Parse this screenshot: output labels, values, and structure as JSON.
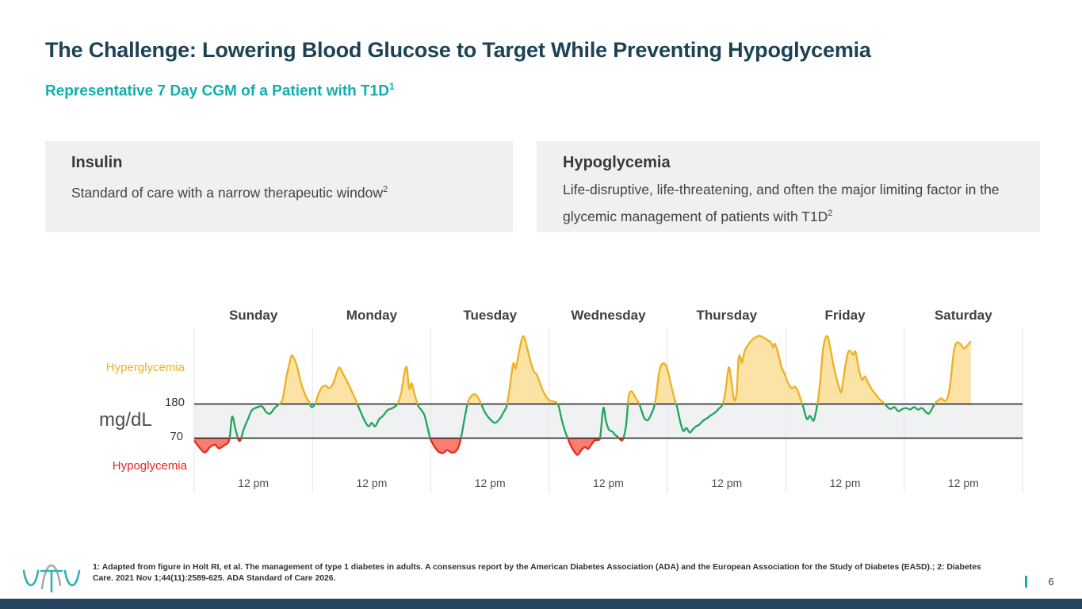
{
  "slide": {
    "title": "The Challenge: Lowering Blood Glucose to Target While Preventing Hypoglycemia",
    "subtitle": "Representative 7 Day CGM of a Patient with T1D",
    "subtitle_sup": "1",
    "page_number": "6"
  },
  "cards": [
    {
      "title": "Insulin",
      "body": "Standard of care with a narrow therapeutic window",
      "sup": "2"
    },
    {
      "title": "Hypoglycemia",
      "body": "Life-disruptive, life-threatening, and often the major limiting factor in the glycemic management of patients with T1D",
      "sup": "2"
    }
  ],
  "footnote": "1: Adapted from figure in Holt RI, et al. The management of type 1 diabetes in adults. A consensus report by the American Diabetes Association (ADA) and the European Association for the Study of Diabetes (EASD).; 2: Diabetes Care. 2021 Nov 1;44(11):2589-625. ADA Standard of Care 2026.",
  "logo_name": "vtv-therapeutics-logo",
  "chart_data": {
    "type": "area",
    "title": "Representative 7 Day CGM of a Patient with T1D",
    "days": [
      "Sunday",
      "Monday",
      "Tuesday",
      "Wednesday",
      "Thursday",
      "Friday",
      "Saturday"
    ],
    "x_tick_label": "12 pm",
    "ylabel": "mg/dL",
    "ylim": [
      40,
      400
    ],
    "thresholds": {
      "high": 180,
      "low": 70
    },
    "zone_labels": {
      "high": "Hyperglycemia",
      "low": "Hypoglycemia"
    },
    "legend_position": "left",
    "grid": "vertical-day-dividers",
    "colors": {
      "in_range_line": "#1fa65c",
      "high_line": "#efb021",
      "high_fill": "#fae3a4",
      "low_line": "#e92a1e",
      "low_fill": "#f87e70",
      "band_fill": "#eff1f3",
      "threshold_line": "#1a1a1a",
      "gridline": "#e7e9f0",
      "accent_teal": "#0fafaf",
      "title_navy": "#1c4254"
    },
    "series": {
      "name": "glucose",
      "unit": "mg/dL",
      "x_unit": "hours_from_sunday_midnight",
      "points": [
        [
          0,
          66
        ],
        [
          0.8,
          57
        ],
        [
          2.1,
          46
        ],
        [
          3.2,
          55
        ],
        [
          4.2,
          59
        ],
        [
          5,
          53
        ],
        [
          6.1,
          58
        ],
        [
          7.1,
          67
        ],
        [
          7.7,
          139
        ],
        [
          8.4,
          96
        ],
        [
          9.2,
          65
        ],
        [
          10.1,
          101
        ],
        [
          10.9,
          131
        ],
        [
          11.7,
          160
        ],
        [
          12.9,
          170
        ],
        [
          13.8,
          172
        ],
        [
          14.6,
          154
        ],
        [
          15.4,
          149
        ],
        [
          16.2,
          165
        ],
        [
          17,
          177
        ],
        [
          17.9,
          195
        ],
        [
          18.7,
          267
        ],
        [
          19.5,
          323
        ],
        [
          19.9,
          336
        ],
        [
          20.8,
          305
        ],
        [
          21.7,
          246
        ],
        [
          22.7,
          203
        ],
        [
          23.3,
          188
        ],
        [
          23.8,
          170
        ],
        [
          24.5,
          180
        ],
        [
          25.1,
          208
        ],
        [
          25.9,
          234
        ],
        [
          26.7,
          239
        ],
        [
          27.4,
          231
        ],
        [
          28.2,
          247
        ],
        [
          28.8,
          275
        ],
        [
          29.4,
          298
        ],
        [
          30.1,
          280
        ],
        [
          30.9,
          257
        ],
        [
          31.9,
          223
        ],
        [
          32.7,
          195
        ],
        [
          33.3,
          172
        ],
        [
          34.1,
          142
        ],
        [
          34.8,
          119
        ],
        [
          35.4,
          108
        ],
        [
          36,
          119
        ],
        [
          36.7,
          108
        ],
        [
          37.5,
          131
        ],
        [
          38.3,
          142
        ],
        [
          39.2,
          160
        ],
        [
          40.2,
          167
        ],
        [
          41.2,
          180
        ],
        [
          42,
          218
        ],
        [
          42.6,
          277
        ],
        [
          43.1,
          298
        ],
        [
          43.6,
          229
        ],
        [
          44.1,
          247
        ],
        [
          44.7,
          211
        ],
        [
          45.4,
          175
        ],
        [
          46,
          162
        ],
        [
          46.7,
          144
        ],
        [
          47.3,
          106
        ],
        [
          47.9,
          69
        ],
        [
          48.8,
          55
        ],
        [
          49.6,
          47
        ],
        [
          50.5,
          45
        ],
        [
          51.3,
          50
        ],
        [
          52.1,
          46
        ],
        [
          52.9,
          47
        ],
        [
          53.6,
          55
        ],
        [
          54.2,
          78
        ],
        [
          54.9,
          139
        ],
        [
          55.5,
          185
        ],
        [
          56.2,
          206
        ],
        [
          57,
          211
        ],
        [
          57.6,
          200
        ],
        [
          58.2,
          180
        ],
        [
          59,
          152
        ],
        [
          60,
          131
        ],
        [
          61,
          119
        ],
        [
          61.9,
          131
        ],
        [
          62.7,
          152
        ],
        [
          63.4,
          175
        ],
        [
          64,
          234
        ],
        [
          64.7,
          310
        ],
        [
          65.2,
          295
        ],
        [
          65.8,
          341
        ],
        [
          66.4,
          387
        ],
        [
          66.9,
          397
        ],
        [
          67.6,
          356
        ],
        [
          68.2,
          318
        ],
        [
          68.9,
          285
        ],
        [
          69.5,
          275
        ],
        [
          70.3,
          239
        ],
        [
          71.3,
          206
        ],
        [
          72.2,
          190
        ],
        [
          73,
          188
        ],
        [
          73.8,
          178
        ],
        [
          74.6,
          126
        ],
        [
          75.3,
          88
        ],
        [
          75.8,
          69
        ],
        [
          76.4,
          57
        ],
        [
          77.2,
          46
        ],
        [
          77.8,
          42
        ],
        [
          78.6,
          51
        ],
        [
          79.3,
          55
        ],
        [
          79.9,
          52
        ],
        [
          80.6,
          60
        ],
        [
          81.2,
          66
        ],
        [
          81.9,
          67
        ],
        [
          82.3,
          69
        ],
        [
          82.5,
          96
        ],
        [
          83,
          168
        ],
        [
          83.5,
          126
        ],
        [
          84.1,
          98
        ],
        [
          84.8,
          91
        ],
        [
          85.4,
          80
        ],
        [
          86,
          73
        ],
        [
          86.5,
          67
        ],
        [
          87,
          69
        ],
        [
          87.6,
          113
        ],
        [
          88.1,
          203
        ],
        [
          88.6,
          221
        ],
        [
          89.1,
          213
        ],
        [
          89.7,
          195
        ],
        [
          90.2,
          183
        ],
        [
          90.7,
          160
        ],
        [
          91.3,
          134
        ],
        [
          92,
          128
        ],
        [
          92.6,
          144
        ],
        [
          93.3,
          172
        ],
        [
          93.7,
          208
        ],
        [
          94.2,
          272
        ],
        [
          94.7,
          305
        ],
        [
          95.4,
          310
        ],
        [
          96,
          290
        ],
        [
          96.6,
          249
        ],
        [
          97.3,
          203
        ],
        [
          97.9,
          172
        ],
        [
          98.6,
          121
        ],
        [
          99.2,
          93
        ],
        [
          99.8,
          103
        ],
        [
          100.5,
          88
        ],
        [
          101.1,
          98
        ],
        [
          101.8,
          108
        ],
        [
          102.4,
          113
        ],
        [
          103.2,
          126
        ],
        [
          104,
          134
        ],
        [
          104.8,
          144
        ],
        [
          105.6,
          152
        ],
        [
          106.4,
          165
        ],
        [
          107.1,
          177
        ],
        [
          107.7,
          216
        ],
        [
          108.2,
          280
        ],
        [
          108.5,
          298
        ],
        [
          109,
          249
        ],
        [
          109.5,
          193
        ],
        [
          110,
          216
        ],
        [
          110.4,
          326
        ],
        [
          110.8,
          331
        ],
        [
          111.1,
          313
        ],
        [
          111.6,
          349
        ],
        [
          112.2,
          367
        ],
        [
          113,
          385
        ],
        [
          113.8,
          395
        ],
        [
          114.6,
          400
        ],
        [
          115.4,
          395
        ],
        [
          116.2,
          387
        ],
        [
          116.9,
          380
        ],
        [
          117.4,
          364
        ],
        [
          117.8,
          374
        ],
        [
          118.5,
          339
        ],
        [
          119.1,
          300
        ],
        [
          119.8,
          275
        ],
        [
          120.4,
          249
        ],
        [
          121.2,
          231
        ],
        [
          121.9,
          236
        ],
        [
          122.5,
          218
        ],
        [
          123,
          195
        ],
        [
          123.5,
          172
        ],
        [
          124,
          142
        ],
        [
          124.4,
          131
        ],
        [
          124.9,
          142
        ],
        [
          125.6,
          126
        ],
        [
          126.1,
          155
        ],
        [
          126.5,
          190
        ],
        [
          127,
          259
        ],
        [
          127.5,
          351
        ],
        [
          128,
          392
        ],
        [
          128.5,
          397
        ],
        [
          129,
          361
        ],
        [
          129.6,
          310
        ],
        [
          130.2,
          267
        ],
        [
          130.9,
          228
        ],
        [
          131.3,
          223
        ],
        [
          132,
          298
        ],
        [
          132.6,
          346
        ],
        [
          133.1,
          351
        ],
        [
          133.6,
          338
        ],
        [
          134.1,
          349
        ],
        [
          134.7,
          300
        ],
        [
          135.4,
          259
        ],
        [
          136,
          269
        ],
        [
          136.6,
          251
        ],
        [
          137.4,
          228
        ],
        [
          138.2,
          211
        ],
        [
          139,
          195
        ],
        [
          139.9,
          183
        ],
        [
          140.5,
          172
        ],
        [
          141.2,
          164
        ],
        [
          142,
          170
        ],
        [
          142.8,
          157
        ],
        [
          143.6,
          164
        ],
        [
          144.4,
          167
        ],
        [
          145.2,
          162
        ],
        [
          146,
          170
        ],
        [
          146.8,
          162
        ],
        [
          147.6,
          167
        ],
        [
          148.4,
          154
        ],
        [
          149,
          149
        ],
        [
          149.7,
          167
        ],
        [
          150.3,
          183
        ],
        [
          151,
          193
        ],
        [
          151.6,
          198
        ],
        [
          152.3,
          190
        ],
        [
          152.9,
          206
        ],
        [
          153.4,
          254
        ],
        [
          153.9,
          331
        ],
        [
          154.3,
          367
        ],
        [
          154.8,
          379
        ],
        [
          155.5,
          372
        ],
        [
          156.1,
          359
        ],
        [
          156.7,
          367
        ],
        [
          157.2,
          377
        ],
        [
          157.5,
          382
        ]
      ]
    }
  }
}
